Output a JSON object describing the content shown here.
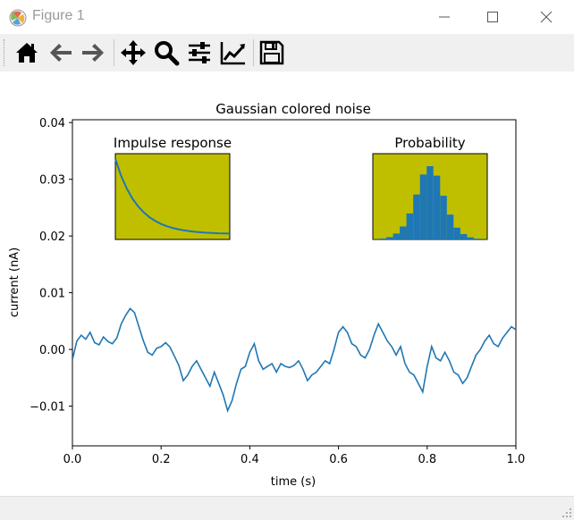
{
  "window": {
    "title": "Figure 1",
    "controls": [
      "minimize-icon",
      "maximize-icon",
      "close-icon"
    ]
  },
  "toolbar": {
    "buttons": [
      {
        "name": "home",
        "icon": "home-icon"
      },
      {
        "name": "back",
        "icon": "arrow-left-icon"
      },
      {
        "name": "forward",
        "icon": "arrow-right-icon"
      },
      {
        "name": "pan",
        "icon": "move-icon"
      },
      {
        "name": "zoom",
        "icon": "magnifier-icon"
      },
      {
        "name": "configure-subplots",
        "icon": "sliders-icon"
      },
      {
        "name": "edit-axis",
        "icon": "line-chart-icon"
      },
      {
        "name": "save",
        "icon": "floppy-disk-icon"
      }
    ]
  },
  "status": {
    "text": ""
  },
  "chart_data": [
    {
      "type": "line",
      "title": "Gaussian colored noise",
      "xlabel": "time (s)",
      "ylabel": "current (nA)",
      "xlim": [
        0,
        1
      ],
      "ylim": [
        -0.017,
        0.0405
      ],
      "xticks": [
        0,
        0.2,
        0.4,
        0.6,
        0.8,
        1.0
      ],
      "xtick_labels": [
        "0.0",
        "0.2",
        "0.4",
        "0.6",
        "0.8",
        "1.0"
      ],
      "yticks": [
        -0.01,
        0,
        0.01,
        0.02,
        0.03,
        0.04
      ],
      "ytick_labels": [
        "−0.01",
        "0.00",
        "0.01",
        "0.02",
        "0.03",
        "0.04"
      ],
      "color": "#1f77b4",
      "x": [
        0.0,
        0.01,
        0.02,
        0.03,
        0.04,
        0.05,
        0.06,
        0.07,
        0.08,
        0.09,
        0.1,
        0.11,
        0.12,
        0.13,
        0.14,
        0.15,
        0.16,
        0.17,
        0.18,
        0.19,
        0.2,
        0.21,
        0.22,
        0.23,
        0.24,
        0.25,
        0.26,
        0.27,
        0.28,
        0.29,
        0.3,
        0.31,
        0.32,
        0.33,
        0.34,
        0.35,
        0.36,
        0.37,
        0.38,
        0.39,
        0.4,
        0.41,
        0.42,
        0.43,
        0.44,
        0.45,
        0.46,
        0.47,
        0.48,
        0.49,
        0.5,
        0.51,
        0.52,
        0.53,
        0.54,
        0.55,
        0.56,
        0.57,
        0.58,
        0.59,
        0.6,
        0.61,
        0.62,
        0.63,
        0.64,
        0.65,
        0.66,
        0.67,
        0.68,
        0.69,
        0.7,
        0.71,
        0.72,
        0.73,
        0.74,
        0.75,
        0.76,
        0.77,
        0.78,
        0.79,
        0.8,
        0.81,
        0.82,
        0.83,
        0.84,
        0.85,
        0.86,
        0.87,
        0.88,
        0.89,
        0.9,
        0.91,
        0.92,
        0.93,
        0.94,
        0.95,
        0.96,
        0.97,
        0.98,
        0.99,
        1.0
      ],
      "y": [
        -0.0018,
        0.0015,
        0.0025,
        0.0018,
        0.003,
        0.0012,
        0.0008,
        0.0022,
        0.0014,
        0.001,
        0.002,
        0.0045,
        0.006,
        0.0072,
        0.0065,
        0.004,
        0.0015,
        -0.0005,
        -0.001,
        0.0002,
        0.0005,
        0.0012,
        0.0004,
        -0.0012,
        -0.0028,
        -0.0055,
        -0.0045,
        -0.003,
        -0.002,
        -0.0035,
        -0.005,
        -0.0065,
        -0.004,
        -0.006,
        -0.008,
        -0.0108,
        -0.009,
        -0.006,
        -0.0035,
        -0.003,
        -0.0005,
        0.001,
        -0.002,
        -0.0035,
        -0.003,
        -0.0025,
        -0.004,
        -0.0025,
        -0.003,
        -0.0032,
        -0.0028,
        -0.002,
        -0.0035,
        -0.0055,
        -0.0045,
        -0.004,
        -0.003,
        -0.002,
        -0.0025,
        0.0,
        0.003,
        0.004,
        0.003,
        0.001,
        0.0005,
        -0.001,
        -0.0015,
        0.0,
        0.0025,
        0.0045,
        0.003,
        0.0015,
        0.0005,
        -0.001,
        0.0005,
        -0.0025,
        -0.004,
        -0.0045,
        -0.006,
        -0.0075,
        -0.003,
        0.0005,
        -0.0015,
        -0.002,
        -0.0005,
        -0.002,
        -0.004,
        -0.0045,
        -0.006,
        -0.005,
        -0.003,
        -0.001,
        0.0,
        0.0015,
        0.0025,
        0.001,
        0.0005,
        0.002,
        0.003,
        0.004,
        0.0035
      ]
    },
    {
      "type": "line",
      "title": "Impulse response",
      "color": "#1f77b4",
      "x": [
        0,
        0.05,
        0.1,
        0.15,
        0.2,
        0.25,
        0.3,
        0.35,
        0.4,
        0.45,
        0.5,
        0.55,
        0.6,
        0.65,
        0.7,
        0.75,
        0.8,
        0.85,
        0.9,
        0.95,
        1.0
      ],
      "y": [
        1.0,
        0.779,
        0.607,
        0.472,
        0.368,
        0.287,
        0.223,
        0.174,
        0.135,
        0.105,
        0.082,
        0.064,
        0.05,
        0.039,
        0.03,
        0.024,
        0.018,
        0.014,
        0.011,
        0.009,
        0.007
      ]
    },
    {
      "type": "bar",
      "title": "Probability",
      "color": "#1f77b4",
      "x": [
        -4,
        -3.5,
        -3,
        -2.5,
        -2,
        -1.5,
        -1,
        -0.5,
        0,
        0.5,
        1,
        1.5,
        2,
        2.5,
        3,
        3.5,
        4
      ],
      "values": [
        0.002,
        0.008,
        0.02,
        0.05,
        0.11,
        0.22,
        0.38,
        0.55,
        0.62,
        0.54,
        0.37,
        0.21,
        0.1,
        0.045,
        0.018,
        0.007,
        0.002
      ]
    }
  ]
}
